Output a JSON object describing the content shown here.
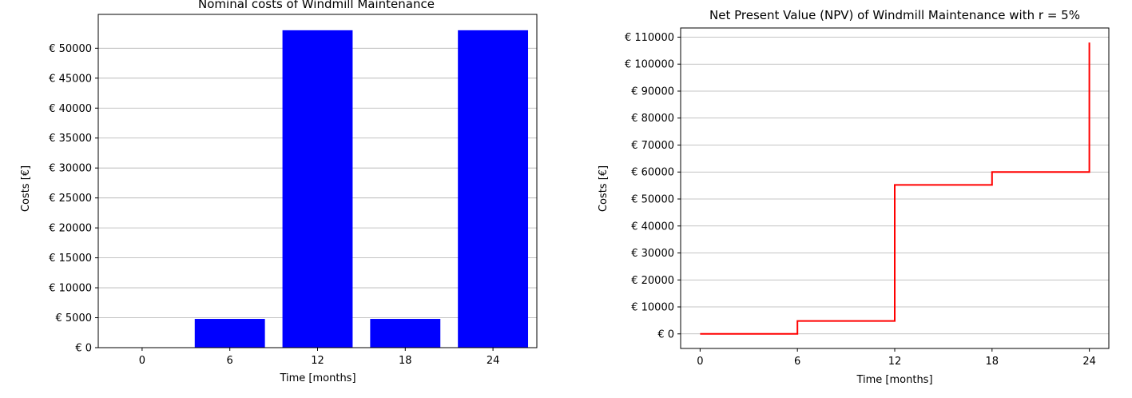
{
  "chart_data": [
    {
      "type": "bar",
      "title": "Nominal costs of Windmill Maintenance",
      "xlabel": "Time [months]",
      "ylabel": "Costs [€]",
      "x": [
        0,
        6,
        12,
        18,
        24
      ],
      "x_tick_labels": [
        "0",
        "6",
        "12",
        "18",
        "24"
      ],
      "values": [
        0,
        4800,
        53000,
        4800,
        53000
      ],
      "bar_color": "#0000ff",
      "xlim": [
        -3,
        27
      ],
      "ylim": [
        0,
        55650
      ],
      "y_ticks": [
        0,
        5000,
        10000,
        15000,
        20000,
        25000,
        30000,
        35000,
        40000,
        45000,
        50000
      ],
      "y_tick_labels": [
        "€ 0",
        "€ 5000",
        "€ 10000",
        "€ 15000",
        "€ 20000",
        "€ 25000",
        "€ 30000",
        "€ 35000",
        "€ 40000",
        "€ 45000",
        "€ 50000"
      ],
      "grid": "y"
    },
    {
      "type": "line",
      "title": "Net Present Value (NPV) of Windmill Maintenance with r = 5%",
      "xlabel": "Time [months]",
      "ylabel": "Costs [€]",
      "x": [
        0,
        6,
        6,
        12,
        12,
        18,
        18,
        24,
        24
      ],
      "y": [
        0,
        0,
        4800,
        4800,
        55200,
        55200,
        60000,
        60000,
        108000
      ],
      "x_ticks": [
        0,
        6,
        12,
        18,
        24
      ],
      "x_tick_labels": [
        "0",
        "6",
        "12",
        "18",
        "24"
      ],
      "line_color": "#ff0000",
      "xlim": [
        -1.2,
        25.2
      ],
      "ylim": [
        -5400,
        113400
      ],
      "y_ticks": [
        0,
        10000,
        20000,
        30000,
        40000,
        50000,
        60000,
        70000,
        80000,
        90000,
        100000,
        110000
      ],
      "y_tick_labels": [
        "€ 0",
        "€ 10000",
        "€ 20000",
        "€ 30000",
        "€ 40000",
        "€ 50000",
        "€ 60000",
        "€ 70000",
        "€ 80000",
        "€ 90000",
        "€ 100000",
        "€ 110000"
      ],
      "grid": "y"
    }
  ]
}
